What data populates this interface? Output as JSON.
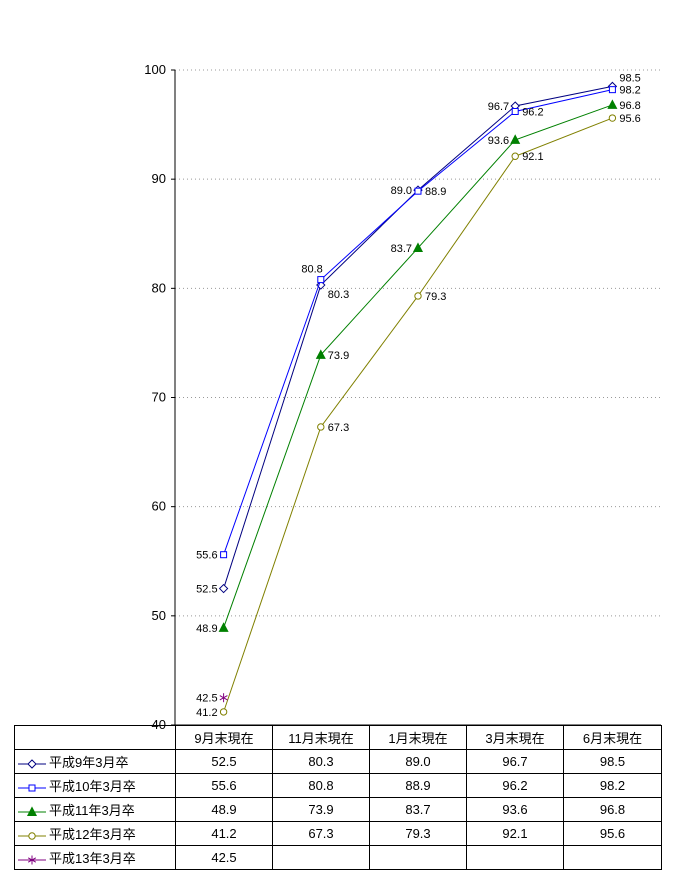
{
  "chart_data": {
    "type": "line",
    "title": "",
    "categories": [
      "9月末現在",
      "11月末現在",
      "1月末現在",
      "3月末現在",
      "6月末現在"
    ],
    "series": [
      {
        "name": "平成9年3月卒",
        "values": [
          52.5,
          80.3,
          89.0,
          96.7,
          98.5
        ],
        "color": "#000080",
        "marker": "diamond",
        "label_pos": [
          "left",
          "below-right",
          "left",
          "left",
          "above-right"
        ]
      },
      {
        "name": "平成10年3月卒",
        "values": [
          55.6,
          80.8,
          88.9,
          96.2,
          98.2
        ],
        "color": "#0000FF",
        "marker": "square",
        "label_pos": [
          "left",
          "above-left",
          "right",
          "right",
          "right"
        ]
      },
      {
        "name": "平成11年3月卒",
        "values": [
          48.9,
          73.9,
          83.7,
          93.6,
          96.8
        ],
        "color": "#008000",
        "marker": "triangle",
        "label_pos": [
          "left",
          "right",
          "left",
          "left",
          "right"
        ]
      },
      {
        "name": "平成12年3月卒",
        "values": [
          41.2,
          67.3,
          79.3,
          92.1,
          95.6
        ],
        "color": "#808000",
        "marker": "circle",
        "label_pos": [
          "left",
          "right",
          "right",
          "right",
          "right"
        ]
      },
      {
        "name": "平成13年3月卒",
        "values": [
          42.5,
          null,
          null,
          null,
          null
        ],
        "color": "#800080",
        "marker": "asterisk",
        "label_pos": [
          "left"
        ]
      }
    ],
    "xlabel": "",
    "ylabel": "",
    "ylim": [
      40,
      100
    ],
    "ytick_step": 10,
    "yticks": [
      40,
      50,
      60,
      70,
      80,
      90,
      100
    ],
    "grid": "horizontal-dotted",
    "legend_position": "table-left-column"
  },
  "table": {
    "header": [
      "",
      "9月末現在",
      "11月末現在",
      "1月末現在",
      "3月末現在",
      "6月末現在"
    ],
    "rows": [
      {
        "label": "平成9年3月卒",
        "values": [
          "52.5",
          "80.3",
          "89.0",
          "96.7",
          "98.5"
        ]
      },
      {
        "label": "平成10年3月卒",
        "values": [
          "55.6",
          "80.8",
          "88.9",
          "96.2",
          "98.2"
        ]
      },
      {
        "label": "平成11年3月卒",
        "values": [
          "48.9",
          "73.9",
          "83.7",
          "93.6",
          "96.8"
        ]
      },
      {
        "label": "平成12年3月卒",
        "values": [
          "41.2",
          "67.3",
          "79.3",
          "92.1",
          "95.6"
        ]
      },
      {
        "label": "平成13年3月卒",
        "values": [
          "42.5",
          "",
          "",
          "",
          ""
        ]
      }
    ]
  },
  "colors": {
    "background": "#FFFFFF",
    "axis": "#000000",
    "grid": "#999999",
    "text": "#000000",
    "marker_fill": "#FFFFFF"
  }
}
